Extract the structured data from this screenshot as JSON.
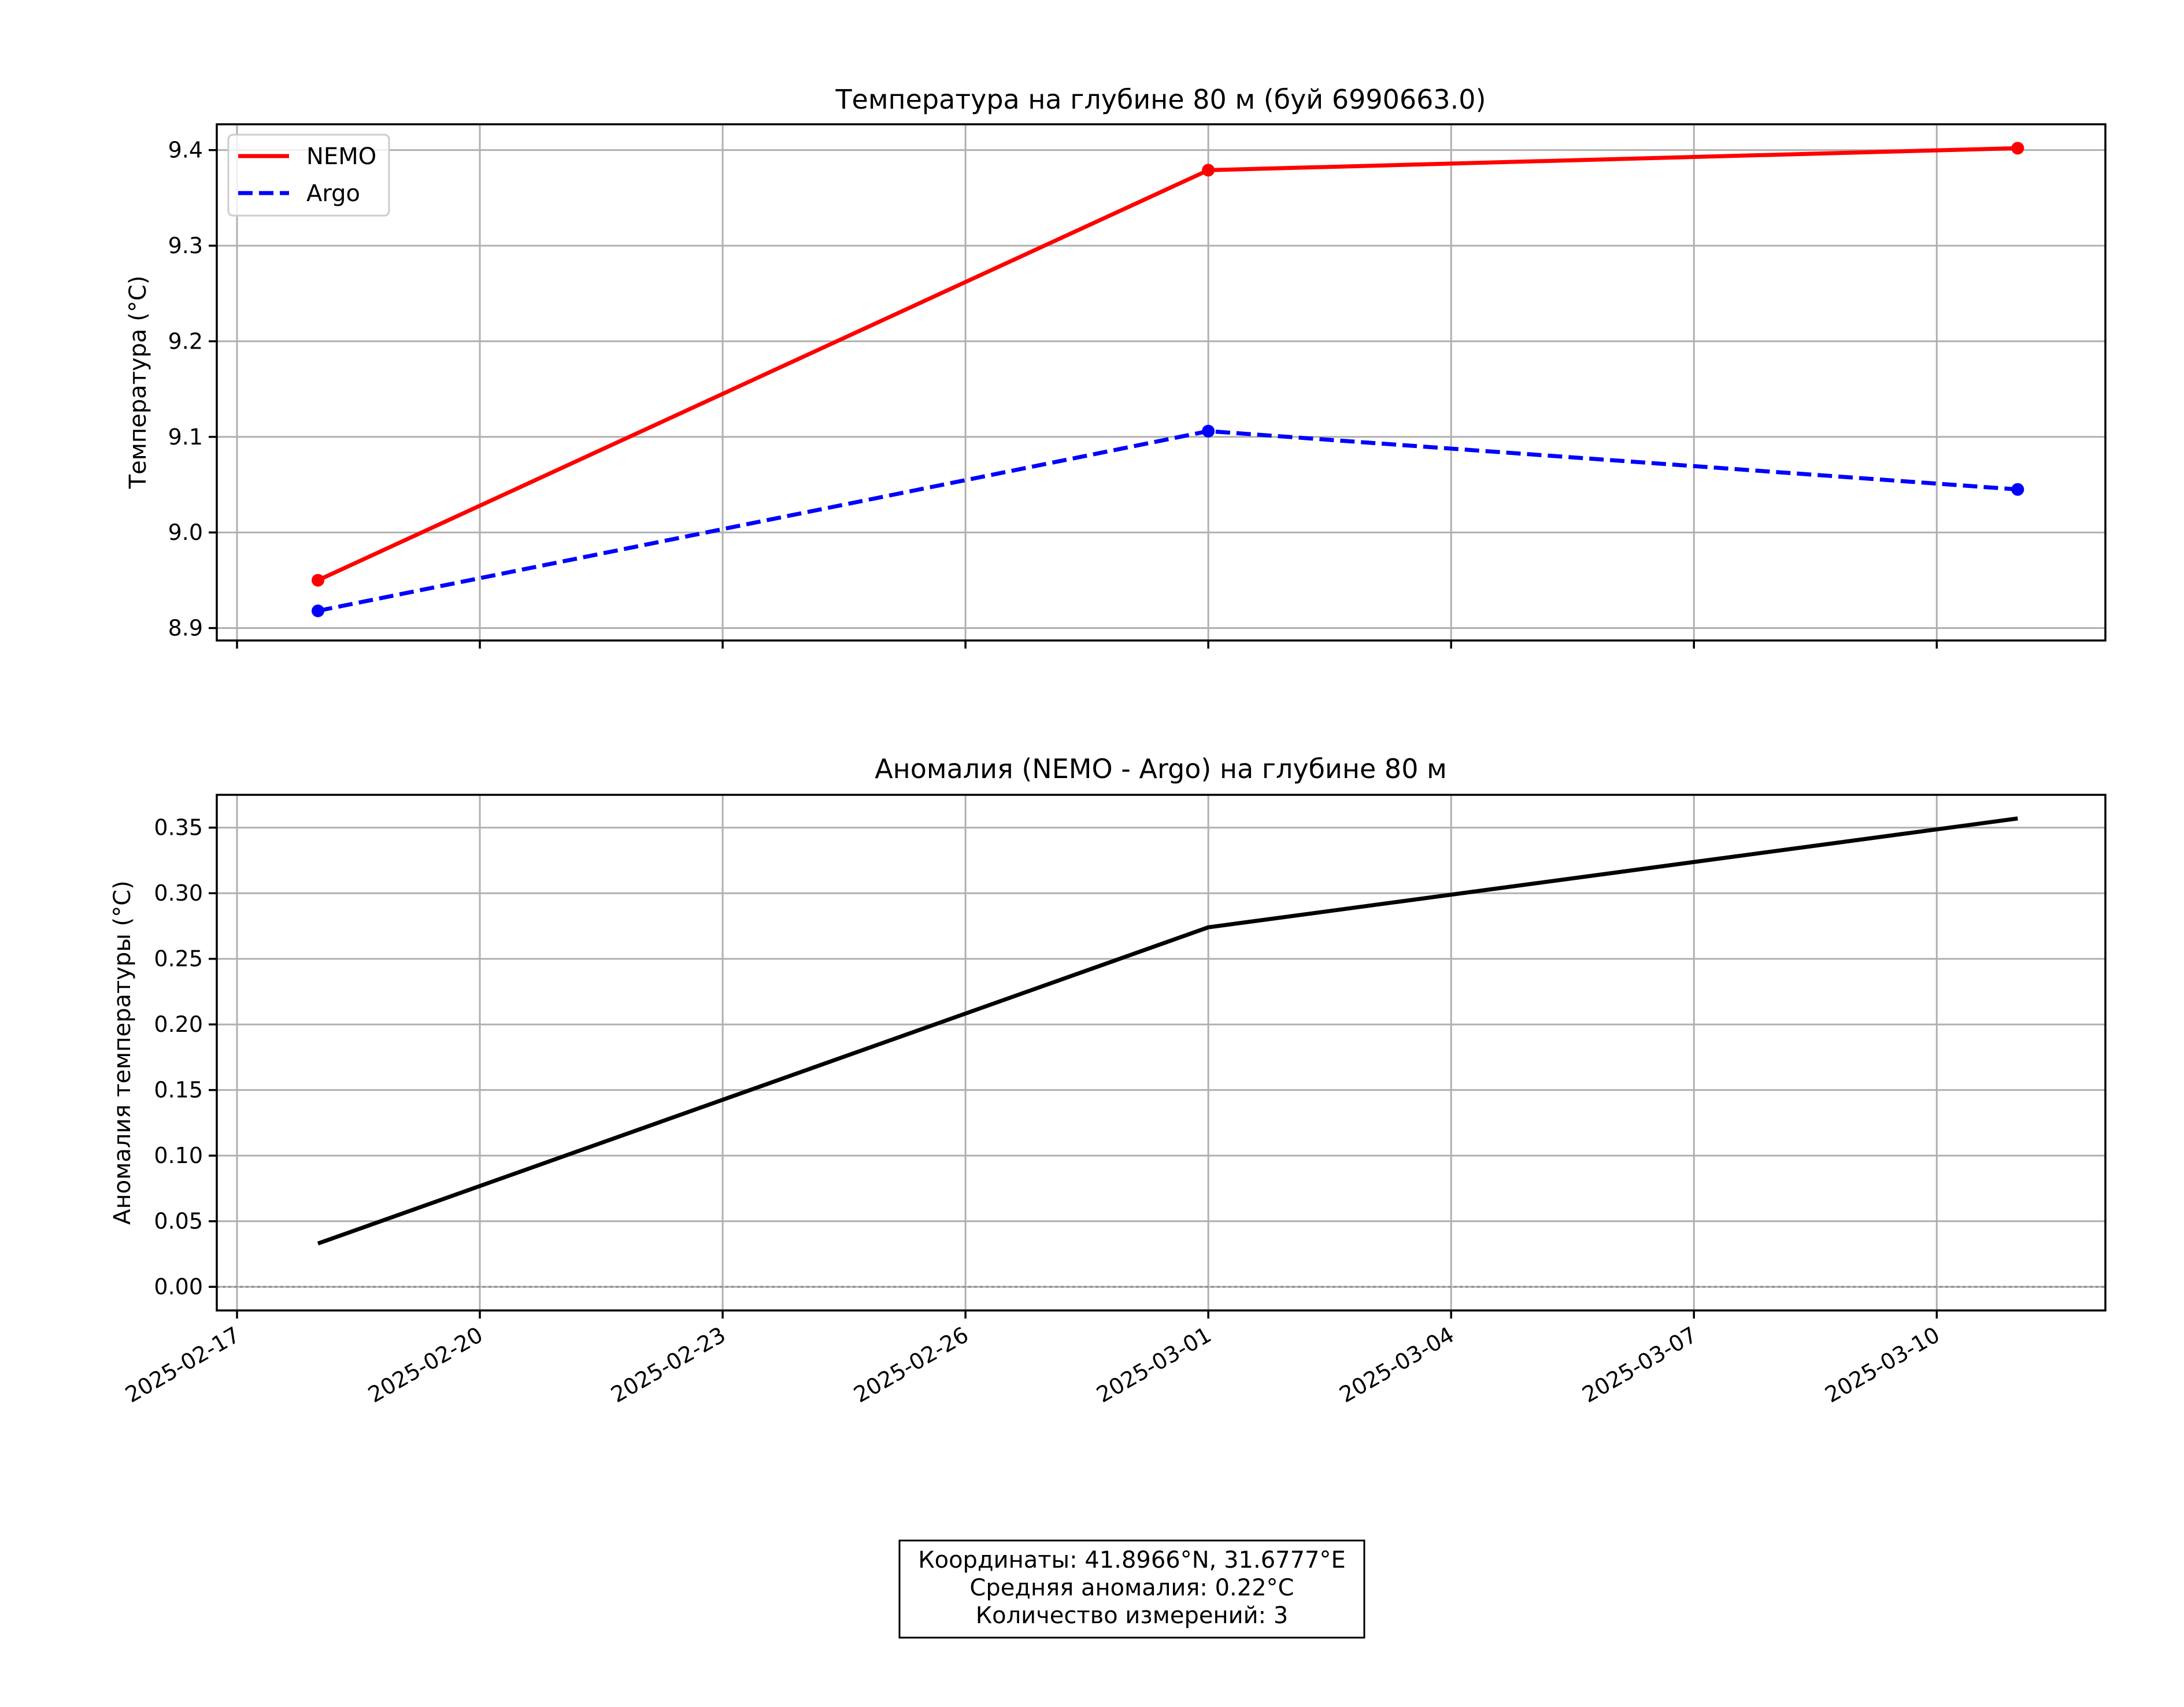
{
  "chart_data": [
    {
      "type": "line",
      "title": "Температура на глубине 80 м (буй 6990663.0)",
      "xlabel": "",
      "ylabel": "Температура (°C)",
      "x_ticks": [
        "2025-02-17",
        "2025-02-20",
        "2025-02-23",
        "2025-02-26",
        "2025-03-01",
        "2025-03-04",
        "2025-03-07",
        "2025-03-10"
      ],
      "xlim": [
        "2025-02-16T18:00",
        "2025-03-12T02:00"
      ],
      "x": [
        "2025-02-18",
        "2025-03-01",
        "2025-03-11"
      ],
      "ylim": [
        8.887,
        9.427
      ],
      "y_ticks": [
        "8.9",
        "9.0",
        "9.1",
        "9.2",
        "9.3",
        "9.4"
      ],
      "grid": true,
      "legend": "top-left",
      "series": [
        {
          "name": "NEMO",
          "color": "#ff0000",
          "style": "solid",
          "markers": true,
          "values": [
            8.95,
            9.379,
            9.402
          ]
        },
        {
          "name": "Argo",
          "color": "#0000ff",
          "style": "dashed",
          "markers": true,
          "values": [
            8.918,
            9.106,
            9.045
          ]
        }
      ]
    },
    {
      "type": "line",
      "title": "Аномалия (NEMO - Argo) на глубине 80 м",
      "xlabel": "",
      "ylabel": "Аномалия температуры (°C)",
      "x_ticks": [
        "2025-02-17",
        "2025-02-20",
        "2025-02-23",
        "2025-02-26",
        "2025-03-01",
        "2025-03-04",
        "2025-03-07",
        "2025-03-10"
      ],
      "xlim": [
        "2025-02-16T18:00",
        "2025-03-12T02:00"
      ],
      "x": [
        "2025-02-18",
        "2025-03-01",
        "2025-03-11"
      ],
      "ylim": [
        -0.018,
        0.375
      ],
      "y_ticks": [
        "0.00",
        "0.05",
        "0.10",
        "0.15",
        "0.20",
        "0.25",
        "0.30",
        "0.35"
      ],
      "grid": true,
      "zero_line": true,
      "series": [
        {
          "color": "#000000",
          "style": "solid",
          "markers": false,
          "values": [
            0.033,
            0.274,
            0.357
          ]
        }
      ]
    }
  ],
  "info_box": {
    "lines": [
      "Координаты: 41.8966°N, 31.6777°E",
      "Средняя аномалия: 0.22°C",
      "Количество измерений: 3"
    ]
  }
}
